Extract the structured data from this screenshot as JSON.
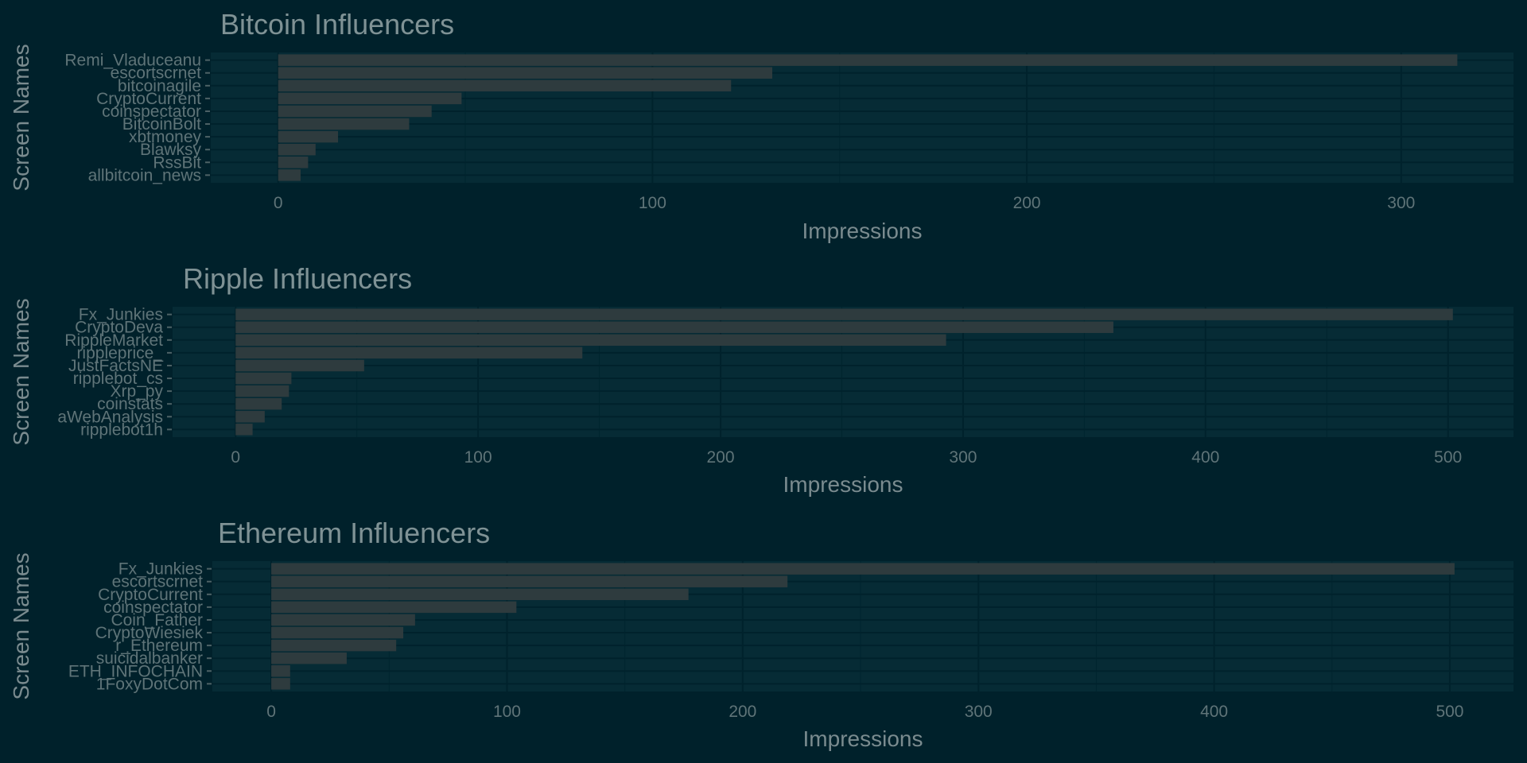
{
  "colors": {
    "background": "#00212b",
    "panel": "#062b35",
    "bar": "#2e3b3e",
    "text": "#7f9295"
  },
  "chart_data": [
    {
      "type": "bar",
      "orientation": "horizontal",
      "title": "Bitcoin Influencers",
      "xlabel": "Impressions",
      "ylabel": "Screen Names",
      "xlim": [
        -18,
        330
      ],
      "xticks": [
        0,
        100,
        200,
        300
      ],
      "grid": true,
      "categories": [
        "Remi_Vladuceanu",
        "escortscrnet",
        "bitcoinagile",
        "CryptoCurrent",
        "coinspectator",
        "BitcoinBolt",
        "xbtmoney",
        "Blawksy",
        "RssBit",
        "allbitcoin_news"
      ],
      "values": [
        315,
        132,
        121,
        49,
        41,
        35,
        16,
        10,
        8,
        6
      ]
    },
    {
      "type": "bar",
      "orientation": "horizontal",
      "title": "Ripple Influencers",
      "xlabel": "Impressions",
      "ylabel": "Screen Names",
      "xlim": [
        -26,
        527
      ],
      "xticks": [
        0,
        100,
        200,
        300,
        400,
        500
      ],
      "grid": true,
      "categories": [
        "Fx_Junkies",
        "CryptoDeva",
        "RippleMarket",
        "rippleprice_",
        "JustFactsNE",
        "ripplebot_cs",
        "Xrp_py",
        "coinstats",
        "aWebAnalysis",
        "ripplebot1h"
      ],
      "values": [
        502,
        362,
        293,
        143,
        53,
        23,
        22,
        19,
        12,
        7
      ]
    },
    {
      "type": "bar",
      "orientation": "horizontal",
      "title": "Ethereum Influencers",
      "xlabel": "Impressions",
      "ylabel": "Screen Names",
      "xlim": [
        -25,
        527
      ],
      "xticks": [
        0,
        100,
        200,
        300,
        400,
        500
      ],
      "grid": true,
      "categories": [
        "Fx_Junkies",
        "escortscrnet",
        "CryptoCurrent",
        "coinspectator",
        "Coin_Father",
        "CryptoWiesiek",
        "r_Ethereum",
        "suicidalbanker",
        "ETH_INFOCHAIN",
        "1FoxyDotCom"
      ],
      "values": [
        502,
        219,
        177,
        104,
        61,
        56,
        53,
        32,
        8,
        8
      ]
    }
  ]
}
